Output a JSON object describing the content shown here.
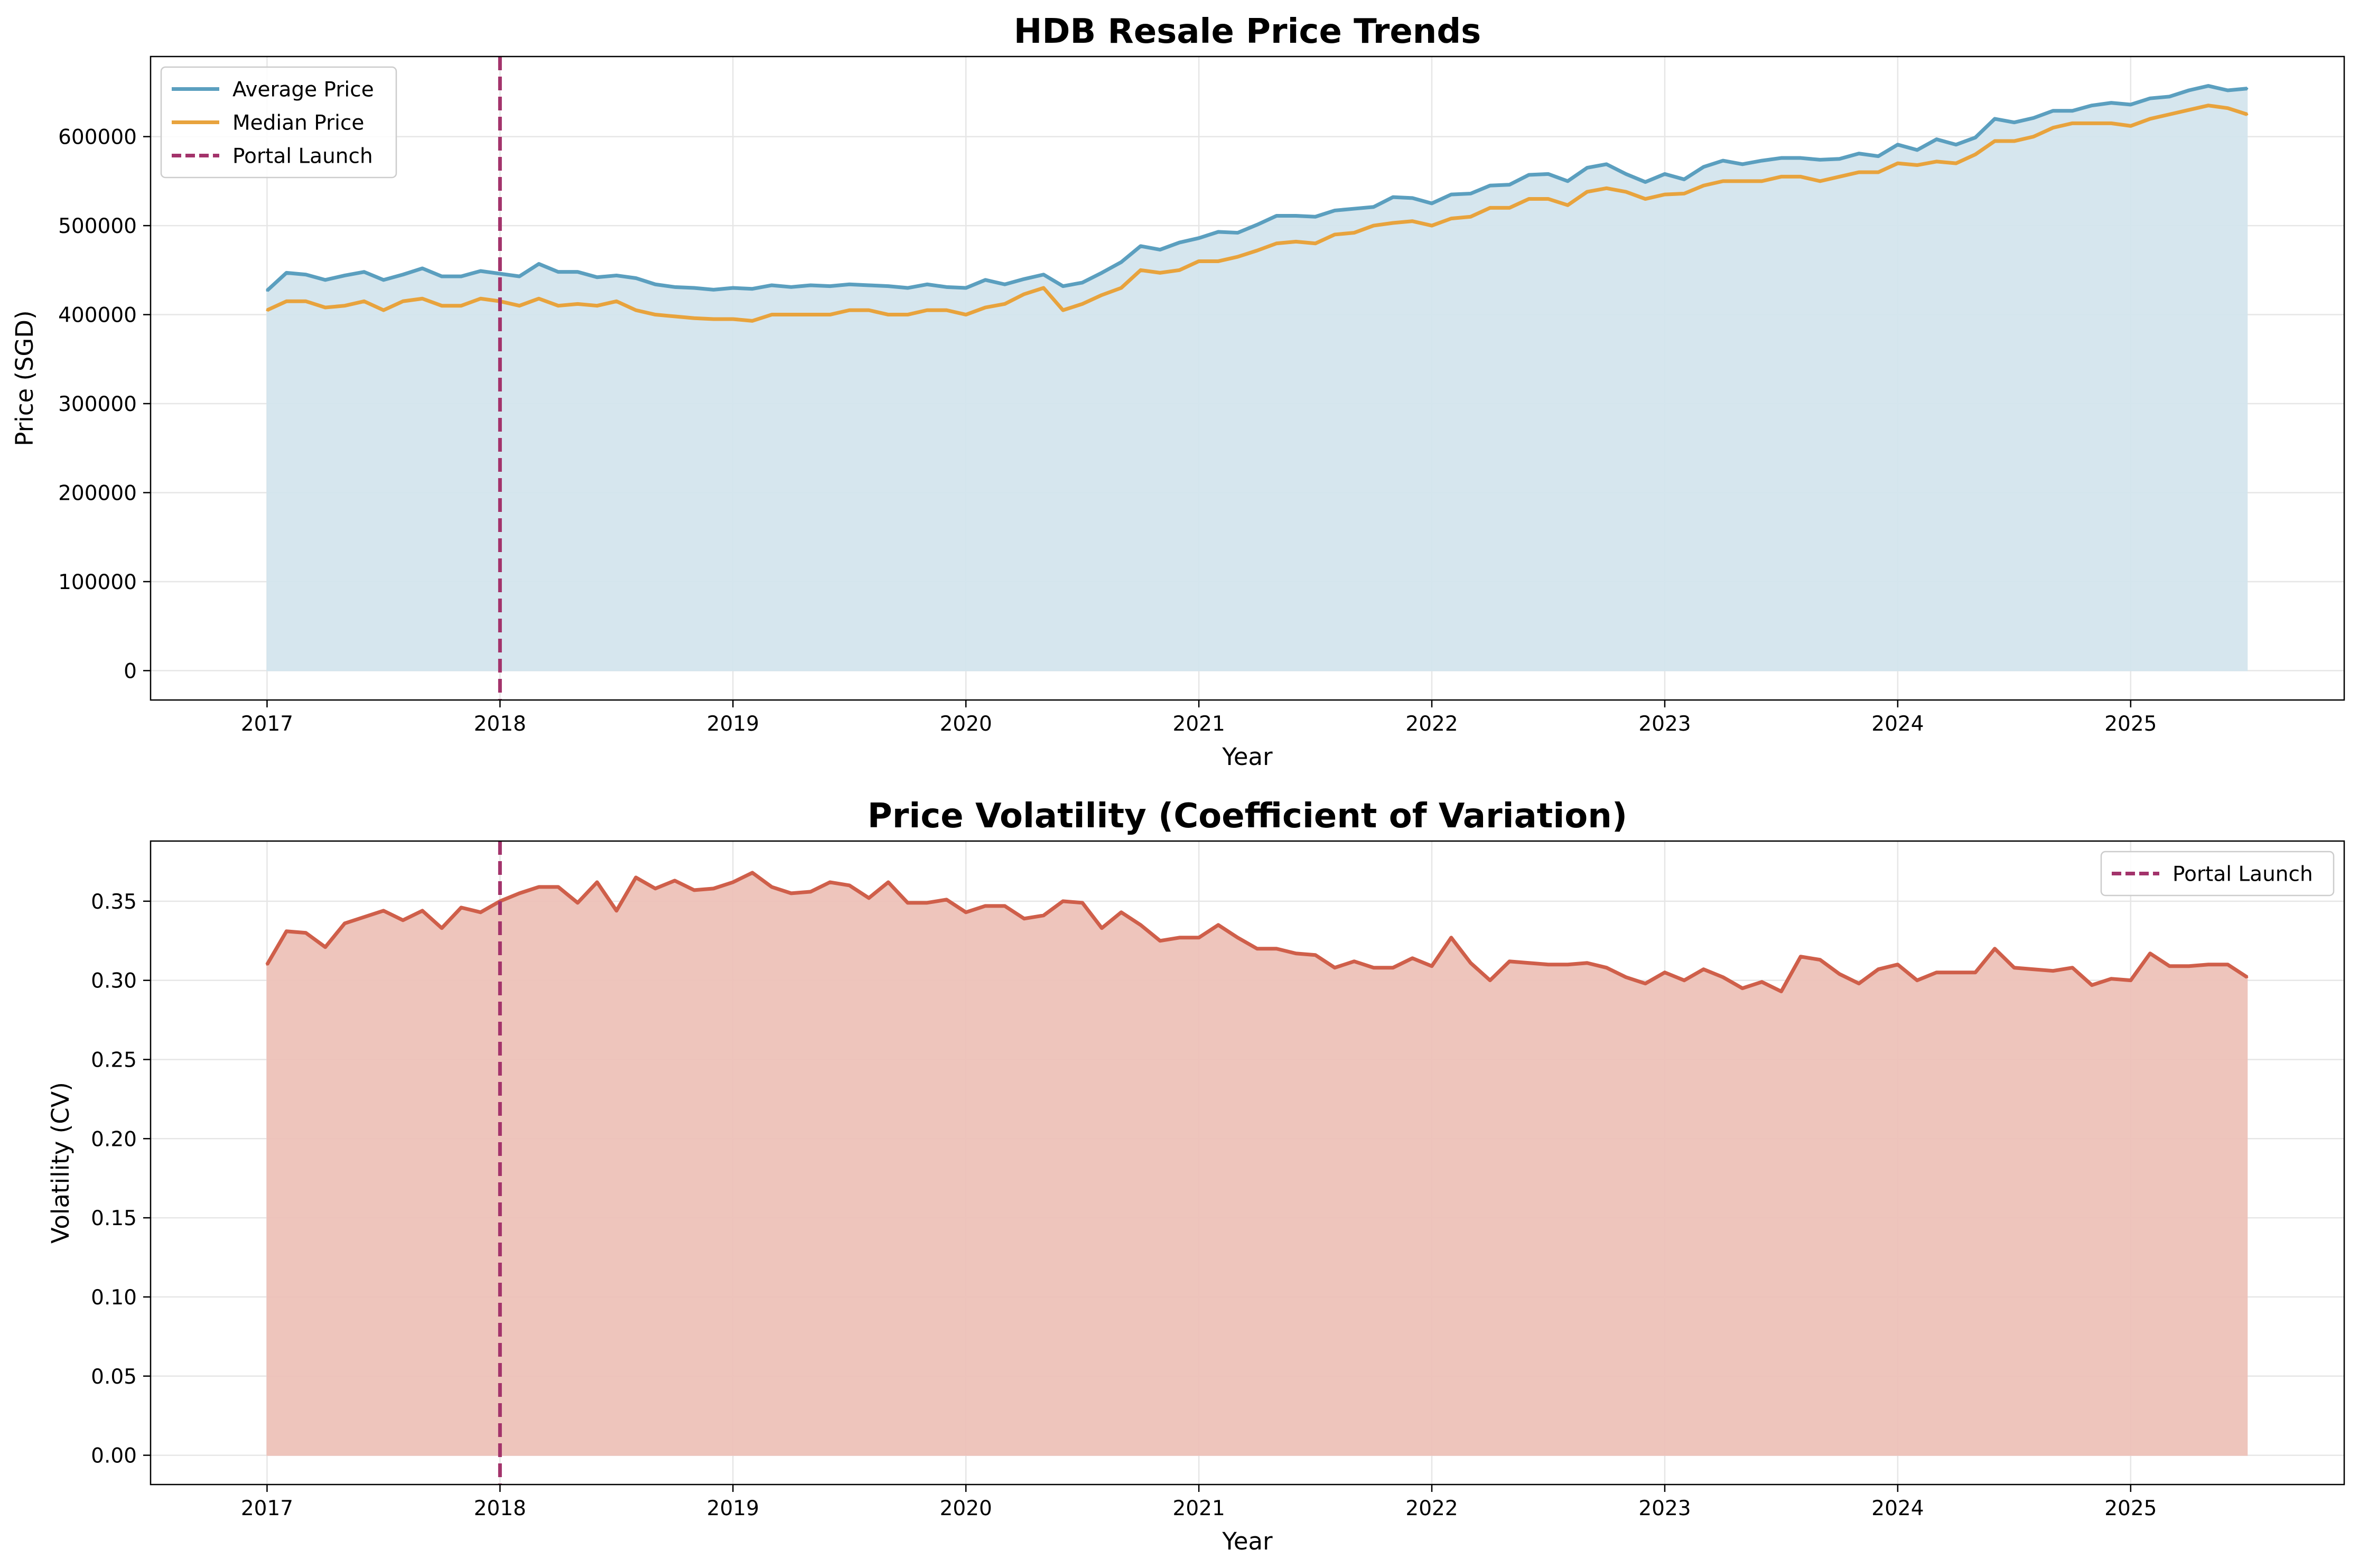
{
  "chart_data": [
    {
      "type": "area",
      "title": "HDB Resale Price Trends",
      "xlabel": "Year",
      "ylabel": "Price (SGD)",
      "x_ticks": [
        "2017",
        "2018",
        "2019",
        "2020",
        "2021",
        "2022",
        "2023",
        "2024",
        "2025"
      ],
      "y_ticks": [
        "0",
        "100000",
        "200000",
        "300000",
        "400000",
        "500000",
        "600000"
      ],
      "xlim": [
        "2016-07",
        "2025-12"
      ],
      "ylim": [
        -33000,
        690000
      ],
      "grid": true,
      "legend_position": "top-left",
      "fill_under": "Average Price",
      "x": [
        "2017-01",
        "2017-02",
        "2017-03",
        "2017-04",
        "2017-05",
        "2017-06",
        "2017-07",
        "2017-08",
        "2017-09",
        "2017-10",
        "2017-11",
        "2017-12",
        "2018-01",
        "2018-02",
        "2018-03",
        "2018-04",
        "2018-05",
        "2018-06",
        "2018-07",
        "2018-08",
        "2018-09",
        "2018-10",
        "2018-11",
        "2018-12",
        "2019-01",
        "2019-02",
        "2019-03",
        "2019-04",
        "2019-05",
        "2019-06",
        "2019-07",
        "2019-08",
        "2019-09",
        "2019-10",
        "2019-11",
        "2019-12",
        "2020-01",
        "2020-02",
        "2020-03",
        "2020-04",
        "2020-05",
        "2020-06",
        "2020-07",
        "2020-08",
        "2020-09",
        "2020-10",
        "2020-11",
        "2020-12",
        "2021-01",
        "2021-02",
        "2021-03",
        "2021-04",
        "2021-05",
        "2021-06",
        "2021-07",
        "2021-08",
        "2021-09",
        "2021-10",
        "2021-11",
        "2021-12",
        "2022-01",
        "2022-02",
        "2022-03",
        "2022-04",
        "2022-05",
        "2022-06",
        "2022-07",
        "2022-08",
        "2022-09",
        "2022-10",
        "2022-11",
        "2022-12",
        "2023-01",
        "2023-02",
        "2023-03",
        "2023-04",
        "2023-05",
        "2023-06",
        "2023-07",
        "2023-08",
        "2023-09",
        "2023-10",
        "2023-11",
        "2023-12",
        "2024-01",
        "2024-02",
        "2024-03",
        "2024-04",
        "2024-05",
        "2024-06",
        "2024-07",
        "2024-08",
        "2024-09",
        "2024-10",
        "2024-11",
        "2024-12",
        "2025-01",
        "2025-02",
        "2025-03",
        "2025-04",
        "2025-05",
        "2025-06",
        "2025-07"
      ],
      "series": [
        {
          "name": "Average Price",
          "color": "#5b9fbf",
          "style": "solid",
          "values": [
            427000,
            447000,
            445000,
            439000,
            444000,
            448000,
            439000,
            445000,
            452000,
            443000,
            443000,
            449000,
            446000,
            443000,
            457000,
            448000,
            448000,
            442000,
            444000,
            441000,
            434000,
            431000,
            430000,
            428000,
            430000,
            429000,
            433000,
            431000,
            433000,
            432000,
            434000,
            433000,
            432000,
            430000,
            434000,
            431000,
            430000,
            439000,
            434000,
            440000,
            445000,
            432000,
            436000,
            447000,
            459000,
            477000,
            473000,
            481000,
            486000,
            493000,
            492000,
            501000,
            511000,
            511000,
            510000,
            517000,
            519000,
            521000,
            532000,
            531000,
            525000,
            535000,
            536000,
            545000,
            546000,
            557000,
            558000,
            550000,
            565000,
            569000,
            558000,
            549000,
            558000,
            552000,
            566000,
            573000,
            569000,
            573000,
            576000,
            576000,
            574000,
            575000,
            581000,
            578000,
            591000,
            585000,
            597000,
            591000,
            599000,
            620000,
            616000,
            621000,
            629000,
            629000,
            635000,
            638000,
            636000,
            643000,
            645000,
            652000,
            657000,
            652000,
            654000
          ]
        },
        {
          "name": "Median Price",
          "color": "#e8a33d",
          "style": "solid",
          "values": [
            405000,
            415000,
            415000,
            408000,
            410000,
            415000,
            405000,
            415000,
            418000,
            410000,
            410000,
            418000,
            415000,
            410000,
            418000,
            410000,
            412000,
            410000,
            415000,
            405000,
            400000,
            398000,
            396000,
            395000,
            395000,
            393000,
            400000,
            400000,
            400000,
            400000,
            405000,
            405000,
            400000,
            400000,
            405000,
            405000,
            400000,
            408000,
            412000,
            423000,
            430000,
            405000,
            412000,
            422000,
            430000,
            450000,
            447000,
            450000,
            460000,
            460000,
            465000,
            472000,
            480000,
            482000,
            480000,
            490000,
            492000,
            500000,
            503000,
            505000,
            500000,
            508000,
            510000,
            520000,
            520000,
            530000,
            530000,
            523000,
            538000,
            542000,
            538000,
            530000,
            535000,
            536000,
            545000,
            550000,
            550000,
            550000,
            555000,
            555000,
            550000,
            555000,
            560000,
            560000,
            570000,
            568000,
            572000,
            570000,
            580000,
            595000,
            595000,
            600000,
            610000,
            615000,
            615000,
            615000,
            612000,
            620000,
            625000,
            630000,
            635000,
            632000,
            625000
          ]
        }
      ],
      "vline": {
        "name": "Portal Launch",
        "x": "2018-01",
        "color": "#a3336b",
        "style": "dashed"
      },
      "fill_color": "#d4e5ee"
    },
    {
      "type": "area",
      "title": "Price Volatility (Coefficient of Variation)",
      "xlabel": "Year",
      "ylabel": "Volatility (CV)",
      "x_ticks": [
        "2017",
        "2018",
        "2019",
        "2020",
        "2021",
        "2022",
        "2023",
        "2024",
        "2025"
      ],
      "y_ticks": [
        "0.00",
        "0.05",
        "0.10",
        "0.15",
        "0.20",
        "0.25",
        "0.30",
        "0.35"
      ],
      "xlim": [
        "2016-07",
        "2025-12"
      ],
      "ylim": [
        -0.0185,
        0.388
      ],
      "grid": true,
      "legend_position": "top-right",
      "x": [
        "2017-01",
        "2017-02",
        "2017-03",
        "2017-04",
        "2017-05",
        "2017-06",
        "2017-07",
        "2017-08",
        "2017-09",
        "2017-10",
        "2017-11",
        "2017-12",
        "2018-01",
        "2018-02",
        "2018-03",
        "2018-04",
        "2018-05",
        "2018-06",
        "2018-07",
        "2018-08",
        "2018-09",
        "2018-10",
        "2018-11",
        "2018-12",
        "2019-01",
        "2019-02",
        "2019-03",
        "2019-04",
        "2019-05",
        "2019-06",
        "2019-07",
        "2019-08",
        "2019-09",
        "2019-10",
        "2019-11",
        "2019-12",
        "2020-01",
        "2020-02",
        "2020-03",
        "2020-04",
        "2020-05",
        "2020-06",
        "2020-07",
        "2020-08",
        "2020-09",
        "2020-10",
        "2020-11",
        "2020-12",
        "2021-01",
        "2021-02",
        "2021-03",
        "2021-04",
        "2021-05",
        "2021-06",
        "2021-07",
        "2021-08",
        "2021-09",
        "2021-10",
        "2021-11",
        "2021-12",
        "2022-01",
        "2022-02",
        "2022-03",
        "2022-04",
        "2022-05",
        "2022-06",
        "2022-07",
        "2022-08",
        "2022-09",
        "2022-10",
        "2022-11",
        "2022-12",
        "2023-01",
        "2023-02",
        "2023-03",
        "2023-04",
        "2023-05",
        "2023-06",
        "2023-07",
        "2023-08",
        "2023-09",
        "2023-10",
        "2023-11",
        "2023-12",
        "2024-01",
        "2024-02",
        "2024-03",
        "2024-04",
        "2024-05",
        "2024-06",
        "2024-07",
        "2024-08",
        "2024-09",
        "2024-10",
        "2024-11",
        "2024-12",
        "2025-01",
        "2025-02",
        "2025-03",
        "2025-04",
        "2025-05",
        "2025-06",
        "2025-07"
      ],
      "series": [
        {
          "name": "",
          "color": "#cf5f4a",
          "style": "solid",
          "values": [
            0.31,
            0.331,
            0.33,
            0.321,
            0.336,
            0.34,
            0.344,
            0.338,
            0.344,
            0.333,
            0.346,
            0.343,
            0.35,
            0.355,
            0.359,
            0.359,
            0.349,
            0.362,
            0.344,
            0.365,
            0.358,
            0.363,
            0.357,
            0.358,
            0.362,
            0.368,
            0.359,
            0.355,
            0.356,
            0.362,
            0.36,
            0.352,
            0.362,
            0.349,
            0.349,
            0.351,
            0.343,
            0.347,
            0.347,
            0.339,
            0.341,
            0.35,
            0.349,
            0.333,
            0.343,
            0.335,
            0.325,
            0.327,
            0.327,
            0.335,
            0.327,
            0.32,
            0.32,
            0.317,
            0.316,
            0.308,
            0.312,
            0.308,
            0.308,
            0.314,
            0.309,
            0.327,
            0.311,
            0.3,
            0.312,
            0.311,
            0.31,
            0.31,
            0.311,
            0.308,
            0.302,
            0.298,
            0.305,
            0.3,
            0.307,
            0.302,
            0.295,
            0.299,
            0.293,
            0.315,
            0.313,
            0.304,
            0.298,
            0.307,
            0.31,
            0.3,
            0.305,
            0.305,
            0.305,
            0.32,
            0.308,
            0.307,
            0.306,
            0.308,
            0.297,
            0.301,
            0.3,
            0.317,
            0.309,
            0.309,
            0.31,
            0.31,
            0.302
          ]
        }
      ],
      "vline": {
        "name": "Portal Launch",
        "x": "2018-01",
        "color": "#a3336b",
        "style": "dashed"
      },
      "fill_color": "#eec2b9"
    }
  ]
}
